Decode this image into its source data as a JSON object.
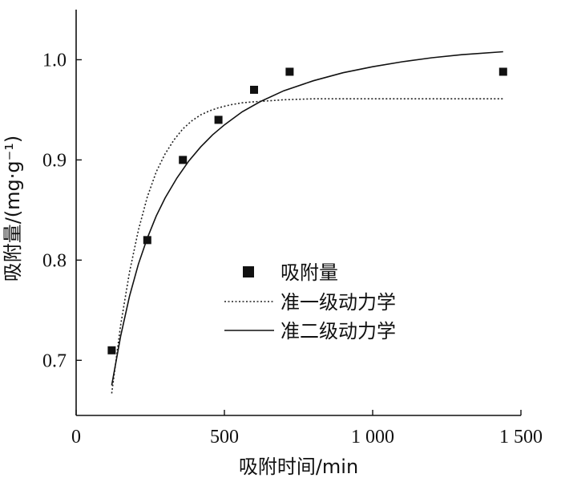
{
  "chart_data": {
    "type": "scatter",
    "title": "",
    "xlabel": "吸附时间/min",
    "ylabel": "吸附量/(mg·g⁻¹)",
    "xlim": [
      0,
      1500
    ],
    "ylim": [
      0.645,
      1.05
    ],
    "grid": false,
    "legend_position": "center-right",
    "x_ticks": [
      {
        "value": 0,
        "label": "0"
      },
      {
        "value": 500,
        "label": "500"
      },
      {
        "value": 1000,
        "label": "1 000"
      },
      {
        "value": 1500,
        "label": "1 500"
      }
    ],
    "y_ticks": [
      {
        "value": 0.7,
        "label": "0.7"
      },
      {
        "value": 0.8,
        "label": "0.8"
      },
      {
        "value": 0.9,
        "label": "0.9"
      },
      {
        "value": 1.0,
        "label": "1.0"
      }
    ],
    "series": [
      {
        "name": "吸附量",
        "kind": "points",
        "x": [
          120,
          240,
          360,
          480,
          600,
          720,
          1440
        ],
        "y": [
          0.71,
          0.82,
          0.9,
          0.94,
          0.97,
          0.988,
          0.988
        ]
      },
      {
        "name": "准一级动力学",
        "kind": "line",
        "style": "dotted",
        "x": [
          120,
          150,
          180,
          210,
          240,
          270,
          300,
          330,
          360,
          390,
          420,
          450,
          480,
          520,
          560,
          600,
          650,
          700,
          800,
          900,
          1000,
          1100,
          1200,
          1300,
          1440
        ],
        "y": [
          0.667,
          0.735,
          0.788,
          0.83,
          0.863,
          0.888,
          0.906,
          0.92,
          0.931,
          0.939,
          0.945,
          0.949,
          0.952,
          0.955,
          0.957,
          0.958,
          0.959,
          0.96,
          0.961,
          0.961,
          0.961,
          0.961,
          0.961,
          0.961,
          0.961
        ]
      },
      {
        "name": "准二级动力学",
        "kind": "line",
        "style": "solid",
        "x": [
          120,
          150,
          180,
          210,
          240,
          270,
          300,
          340,
          380,
          420,
          460,
          500,
          560,
          620,
          700,
          800,
          900,
          1000,
          1100,
          1200,
          1300,
          1440
        ],
        "y": [
          0.675,
          0.724,
          0.764,
          0.796,
          0.822,
          0.844,
          0.862,
          0.882,
          0.899,
          0.913,
          0.925,
          0.935,
          0.948,
          0.958,
          0.969,
          0.979,
          0.987,
          0.993,
          0.998,
          1.002,
          1.005,
          1.008
        ]
      }
    ]
  }
}
